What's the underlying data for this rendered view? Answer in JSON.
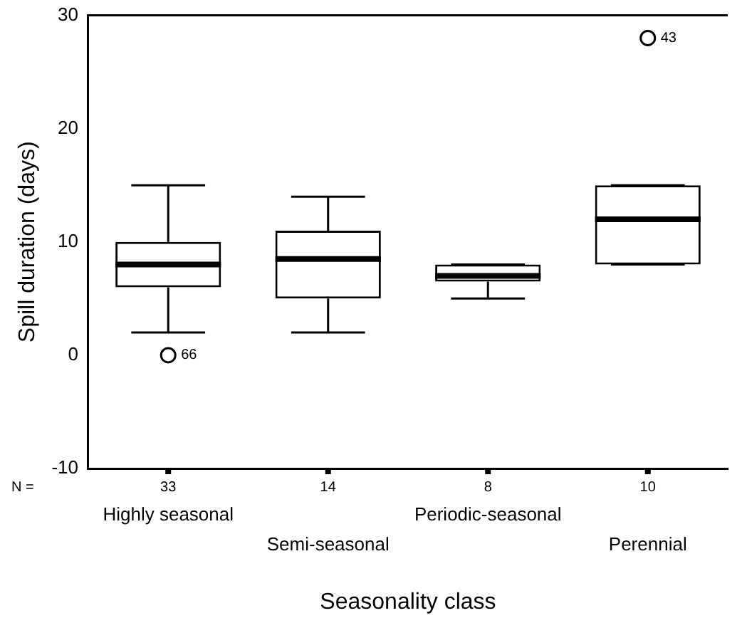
{
  "chart_data": {
    "type": "box",
    "xlabel": "Seasonality class",
    "ylabel": "Spill duration (days)",
    "categories": [
      "Highly seasonal",
      "Semi-seasonal",
      "Periodic-seasonal",
      "Perennial"
    ],
    "boxes": [
      {
        "low": 2,
        "q1": 6,
        "median": 8,
        "q3": 10,
        "high": 15,
        "outliers": [
          0
        ]
      },
      {
        "low": 2,
        "q1": 5,
        "median": 8.5,
        "q3": 11,
        "high": 14
      },
      {
        "low": 5,
        "q1": 6.5,
        "median": 7,
        "q3": 8,
        "high": 8
      },
      {
        "low": 8,
        "q1": 8,
        "median": 12,
        "q3": 15,
        "high": 15,
        "outliers": [
          28
        ]
      }
    ],
    "ylim": [
      -10,
      30
    ],
    "yticks": [
      -10,
      0,
      10,
      20,
      30
    ],
    "grid": false,
    "legend": false,
    "marker": "circle",
    "annotations": [
      "N =",
      "33",
      "14",
      "8",
      "10",
      "66",
      "43"
    ]
  }
}
